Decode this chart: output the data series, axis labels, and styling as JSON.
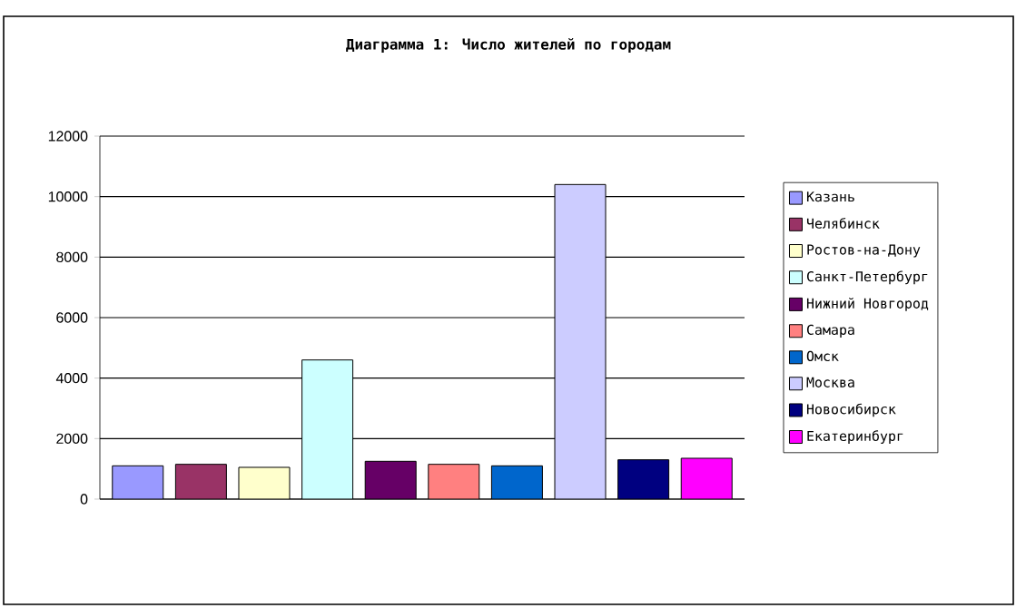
{
  "chart_data": {
    "type": "bar",
    "title": "Диаграмма 1: Число жителей по городам",
    "categories": [
      null,
      null,
      null,
      null,
      null,
      null,
      null,
      null,
      null,
      null
    ],
    "series": [
      {
        "name": "Казань",
        "color": "#9999ff",
        "values": [
          1100,
          null,
          null,
          null,
          null,
          null,
          null,
          null,
          null,
          null
        ]
      },
      {
        "name": "Челябинск",
        "color": "#993366",
        "values": [
          null,
          1150,
          null,
          null,
          null,
          null,
          null,
          null,
          null,
          null
        ]
      },
      {
        "name": "Ростов-на-Дону",
        "color": "#ffffcc",
        "values": [
          null,
          null,
          1050,
          null,
          null,
          null,
          null,
          null,
          null,
          null
        ]
      },
      {
        "name": "Санкт-Петербург",
        "color": "#ccffff",
        "values": [
          null,
          null,
          null,
          4600,
          null,
          null,
          null,
          null,
          null,
          null
        ]
      },
      {
        "name": "Нижний Новгород",
        "color": "#660066",
        "values": [
          null,
          null,
          null,
          null,
          1250,
          null,
          null,
          null,
          null,
          null
        ]
      },
      {
        "name": "Самара",
        "color": "#ff8080",
        "values": [
          null,
          null,
          null,
          null,
          null,
          1150,
          null,
          null,
          null,
          null
        ]
      },
      {
        "name": "Омск",
        "color": "#0066cc",
        "values": [
          null,
          null,
          null,
          null,
          null,
          null,
          1100,
          null,
          null,
          null
        ]
      },
      {
        "name": "Москва",
        "color": "#ccccff",
        "values": [
          null,
          null,
          null,
          null,
          null,
          null,
          null,
          10400,
          null,
          null
        ]
      },
      {
        "name": "Новосибирск",
        "color": "#000080",
        "values": [
          null,
          null,
          null,
          null,
          null,
          null,
          null,
          null,
          1300,
          null
        ]
      },
      {
        "name": "Екатеринбург",
        "color": "#ff00ff",
        "values": [
          null,
          null,
          null,
          null,
          null,
          null,
          null,
          null,
          null,
          1350
        ]
      }
    ],
    "ylim": [
      0,
      12000
    ],
    "yticks": [
      0,
      2000,
      4000,
      6000,
      8000,
      10000,
      12000
    ],
    "grid": "y",
    "legend": "right"
  }
}
